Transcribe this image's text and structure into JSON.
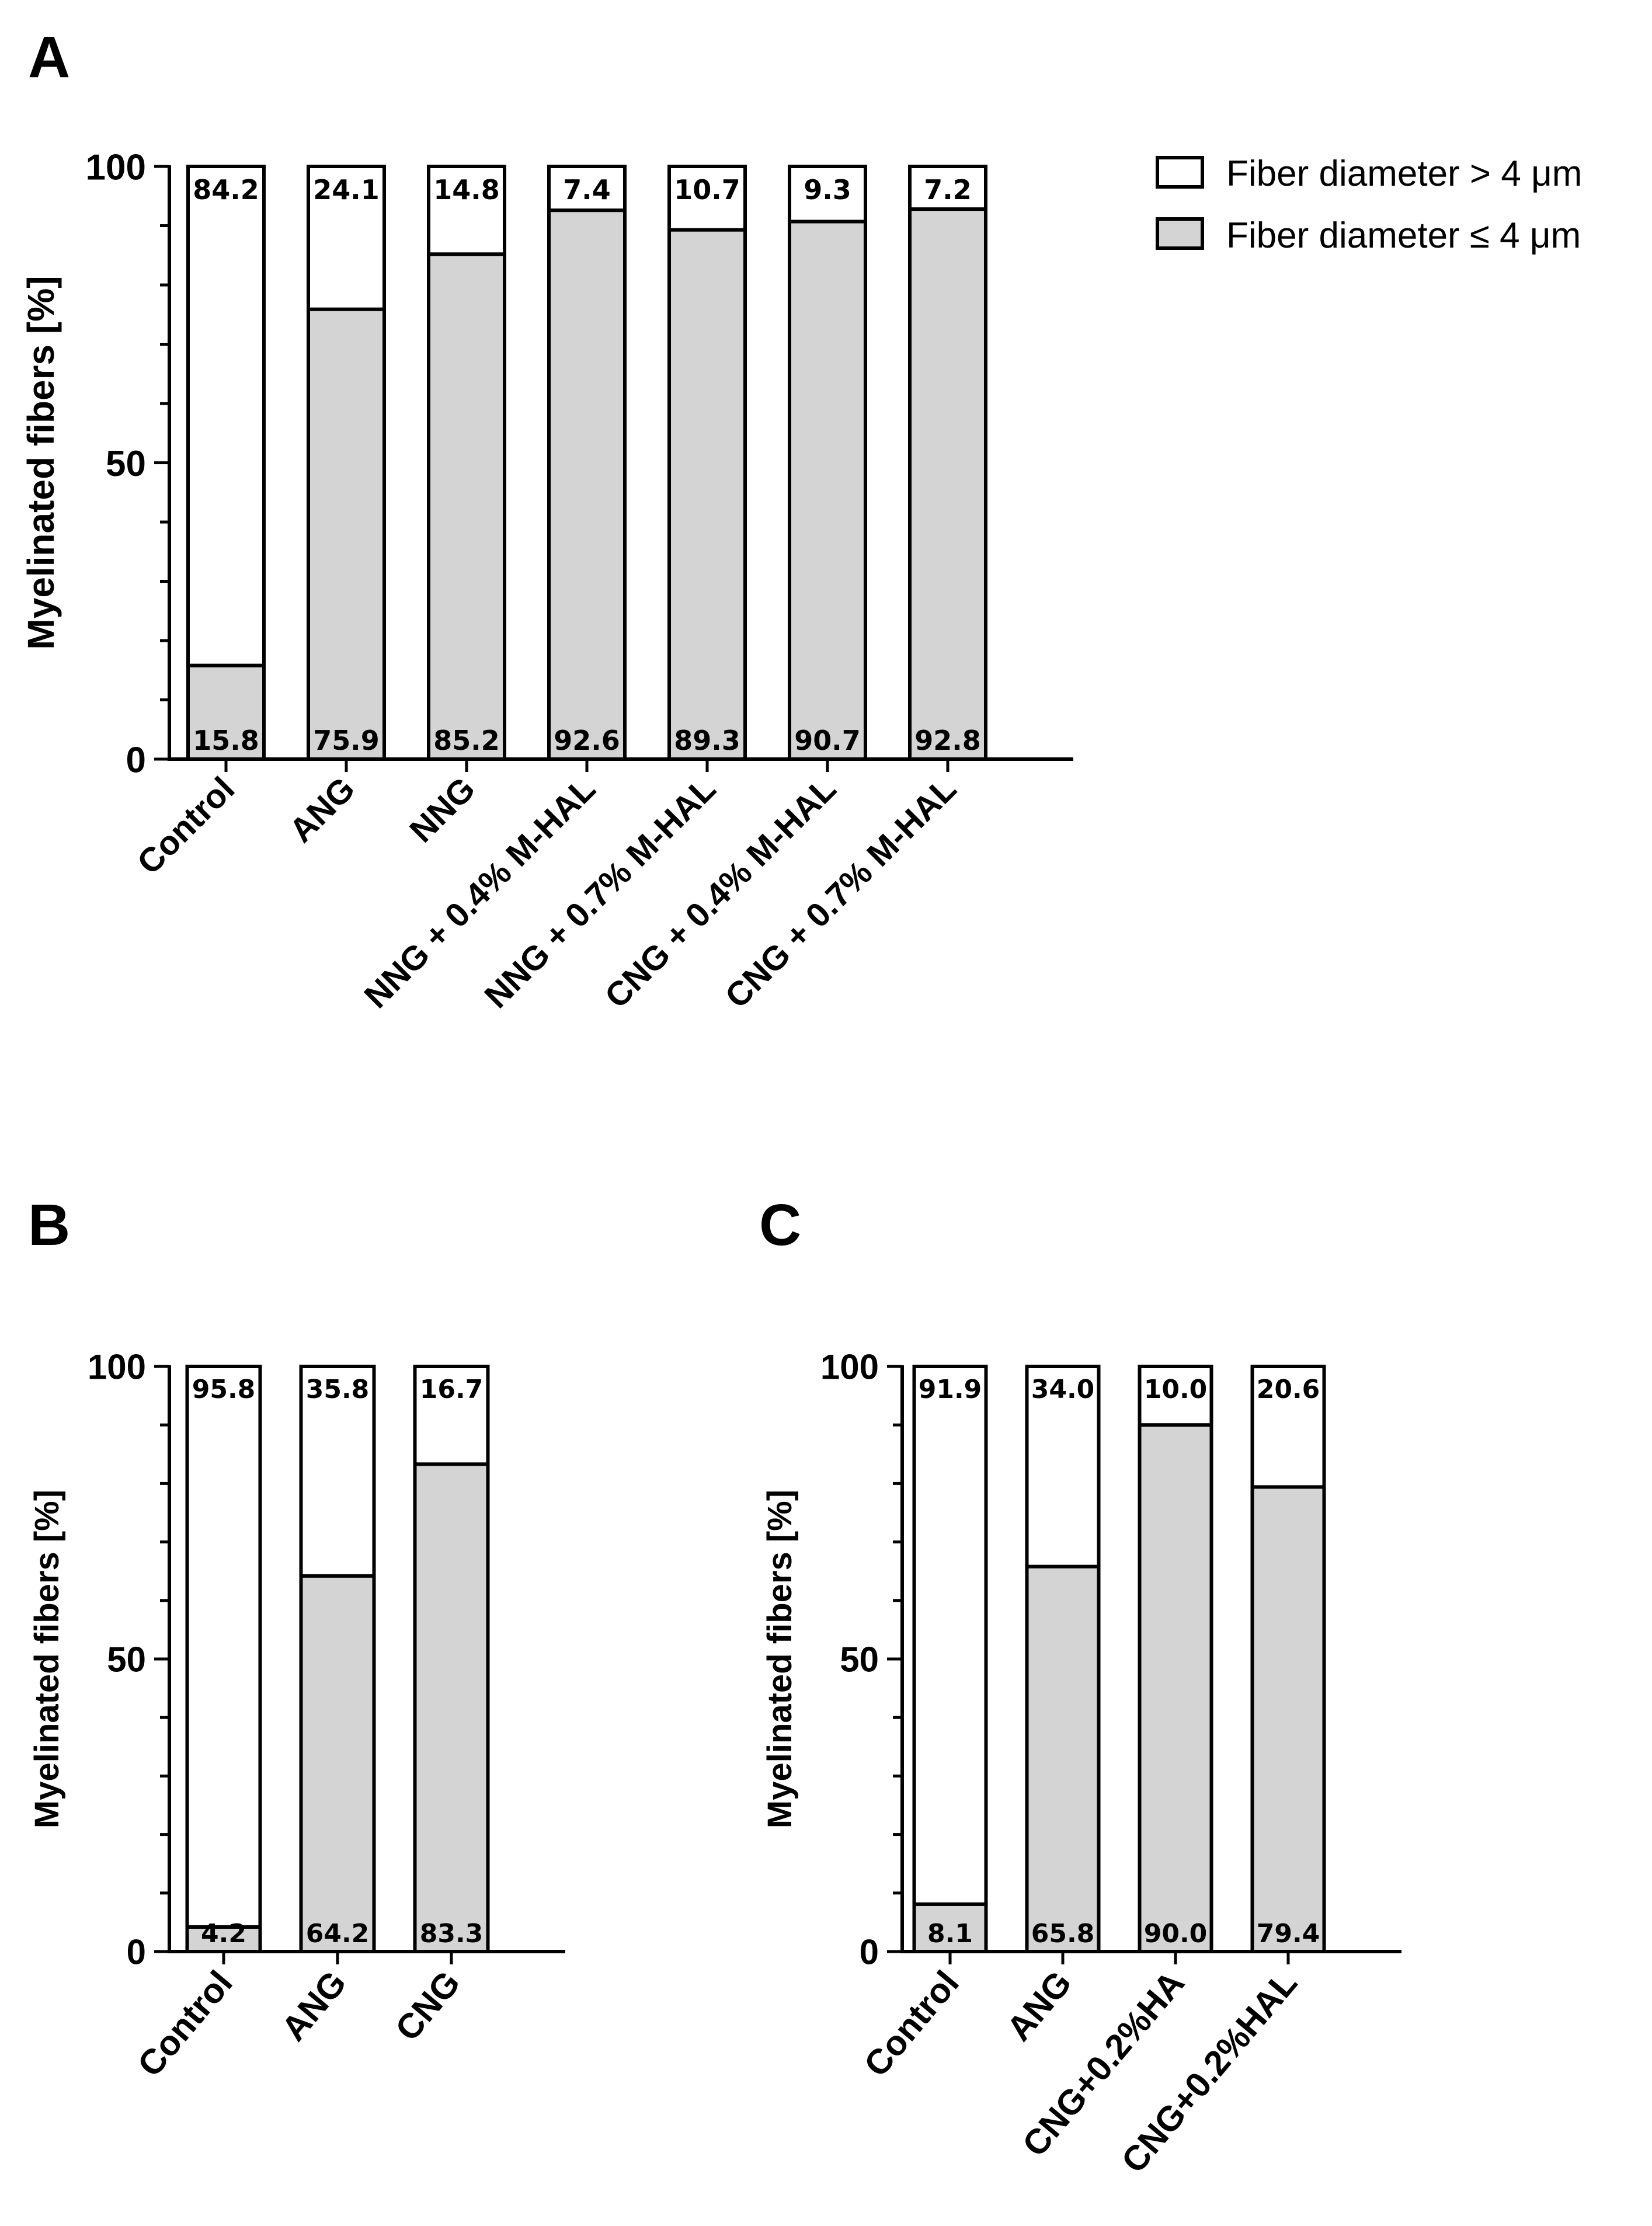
{
  "colors": {
    "small_fill": "#d4d4d4",
    "large_fill": "#ffffff",
    "stroke": "#000000"
  },
  "legend": {
    "large_label": "Fiber diameter > 4 μm",
    "small_label": "Fiber diameter ≤ 4 μm"
  },
  "chart_data": [
    {
      "panel": "A",
      "type": "bar",
      "stacked": true,
      "ylabel": "Myelinated fibers [%]",
      "ylim": [
        0,
        100
      ],
      "yticks": [
        "0",
        "50",
        "100"
      ],
      "categories": [
        "Control",
        "ANG",
        "NNG",
        "NNG + 0.4% M-HAL",
        "NNG + 0.7% M-HAL",
        "CNG + 0.4% M-HAL",
        "CNG + 0.7% M-HAL"
      ],
      "series": [
        {
          "name": "Fiber diameter ≤ 4 μm",
          "values": [
            15.8,
            75.9,
            85.2,
            92.6,
            89.3,
            90.7,
            92.8
          ],
          "labels": [
            "15.8",
            "75.9",
            "85.2",
            "92.6",
            "89.3",
            "90.7",
            "92.8"
          ]
        },
        {
          "name": "Fiber diameter > 4 μm",
          "values": [
            84.2,
            24.1,
            14.8,
            7.4,
            10.7,
            9.3,
            7.2
          ],
          "labels": [
            "84.2",
            "24.1",
            "14.8",
            "7.4",
            "10.7",
            "9.3",
            "7.2"
          ]
        }
      ],
      "legend_position": "top-right"
    },
    {
      "panel": "B",
      "type": "bar",
      "stacked": true,
      "ylabel": "Myelinated fibers [%]",
      "ylim": [
        0,
        100
      ],
      "yticks": [
        "0",
        "50",
        "100"
      ],
      "categories": [
        "Control",
        "ANG",
        "CNG"
      ],
      "series": [
        {
          "name": "Fiber diameter ≤ 4 μm",
          "values": [
            4.2,
            64.2,
            83.3
          ],
          "labels": [
            "4.2",
            "64.2",
            "83.3"
          ]
        },
        {
          "name": "Fiber diameter > 4 μm",
          "values": [
            95.8,
            35.8,
            16.7
          ],
          "labels": [
            "95.8",
            "35.8",
            "16.7"
          ]
        }
      ]
    },
    {
      "panel": "C",
      "type": "bar",
      "stacked": true,
      "ylabel": "Myelinated fibers [%]",
      "ylim": [
        0,
        100
      ],
      "yticks": [
        "0",
        "50",
        "100"
      ],
      "categories": [
        "Control",
        "ANG",
        "CNG+0.2%HA",
        "CNG+0.2%HAL"
      ],
      "series": [
        {
          "name": "Fiber diameter ≤ 4 μm",
          "values": [
            8.1,
            65.8,
            90.0,
            79.4
          ],
          "labels": [
            "8.1",
            "65.8",
            "90.0",
            "79.4"
          ]
        },
        {
          "name": "Fiber diameter > 4 μm",
          "values": [
            91.9,
            34.0,
            10.0,
            20.6
          ],
          "labels": [
            "91.9",
            "34.0",
            "10.0",
            "20.6"
          ]
        }
      ]
    }
  ]
}
